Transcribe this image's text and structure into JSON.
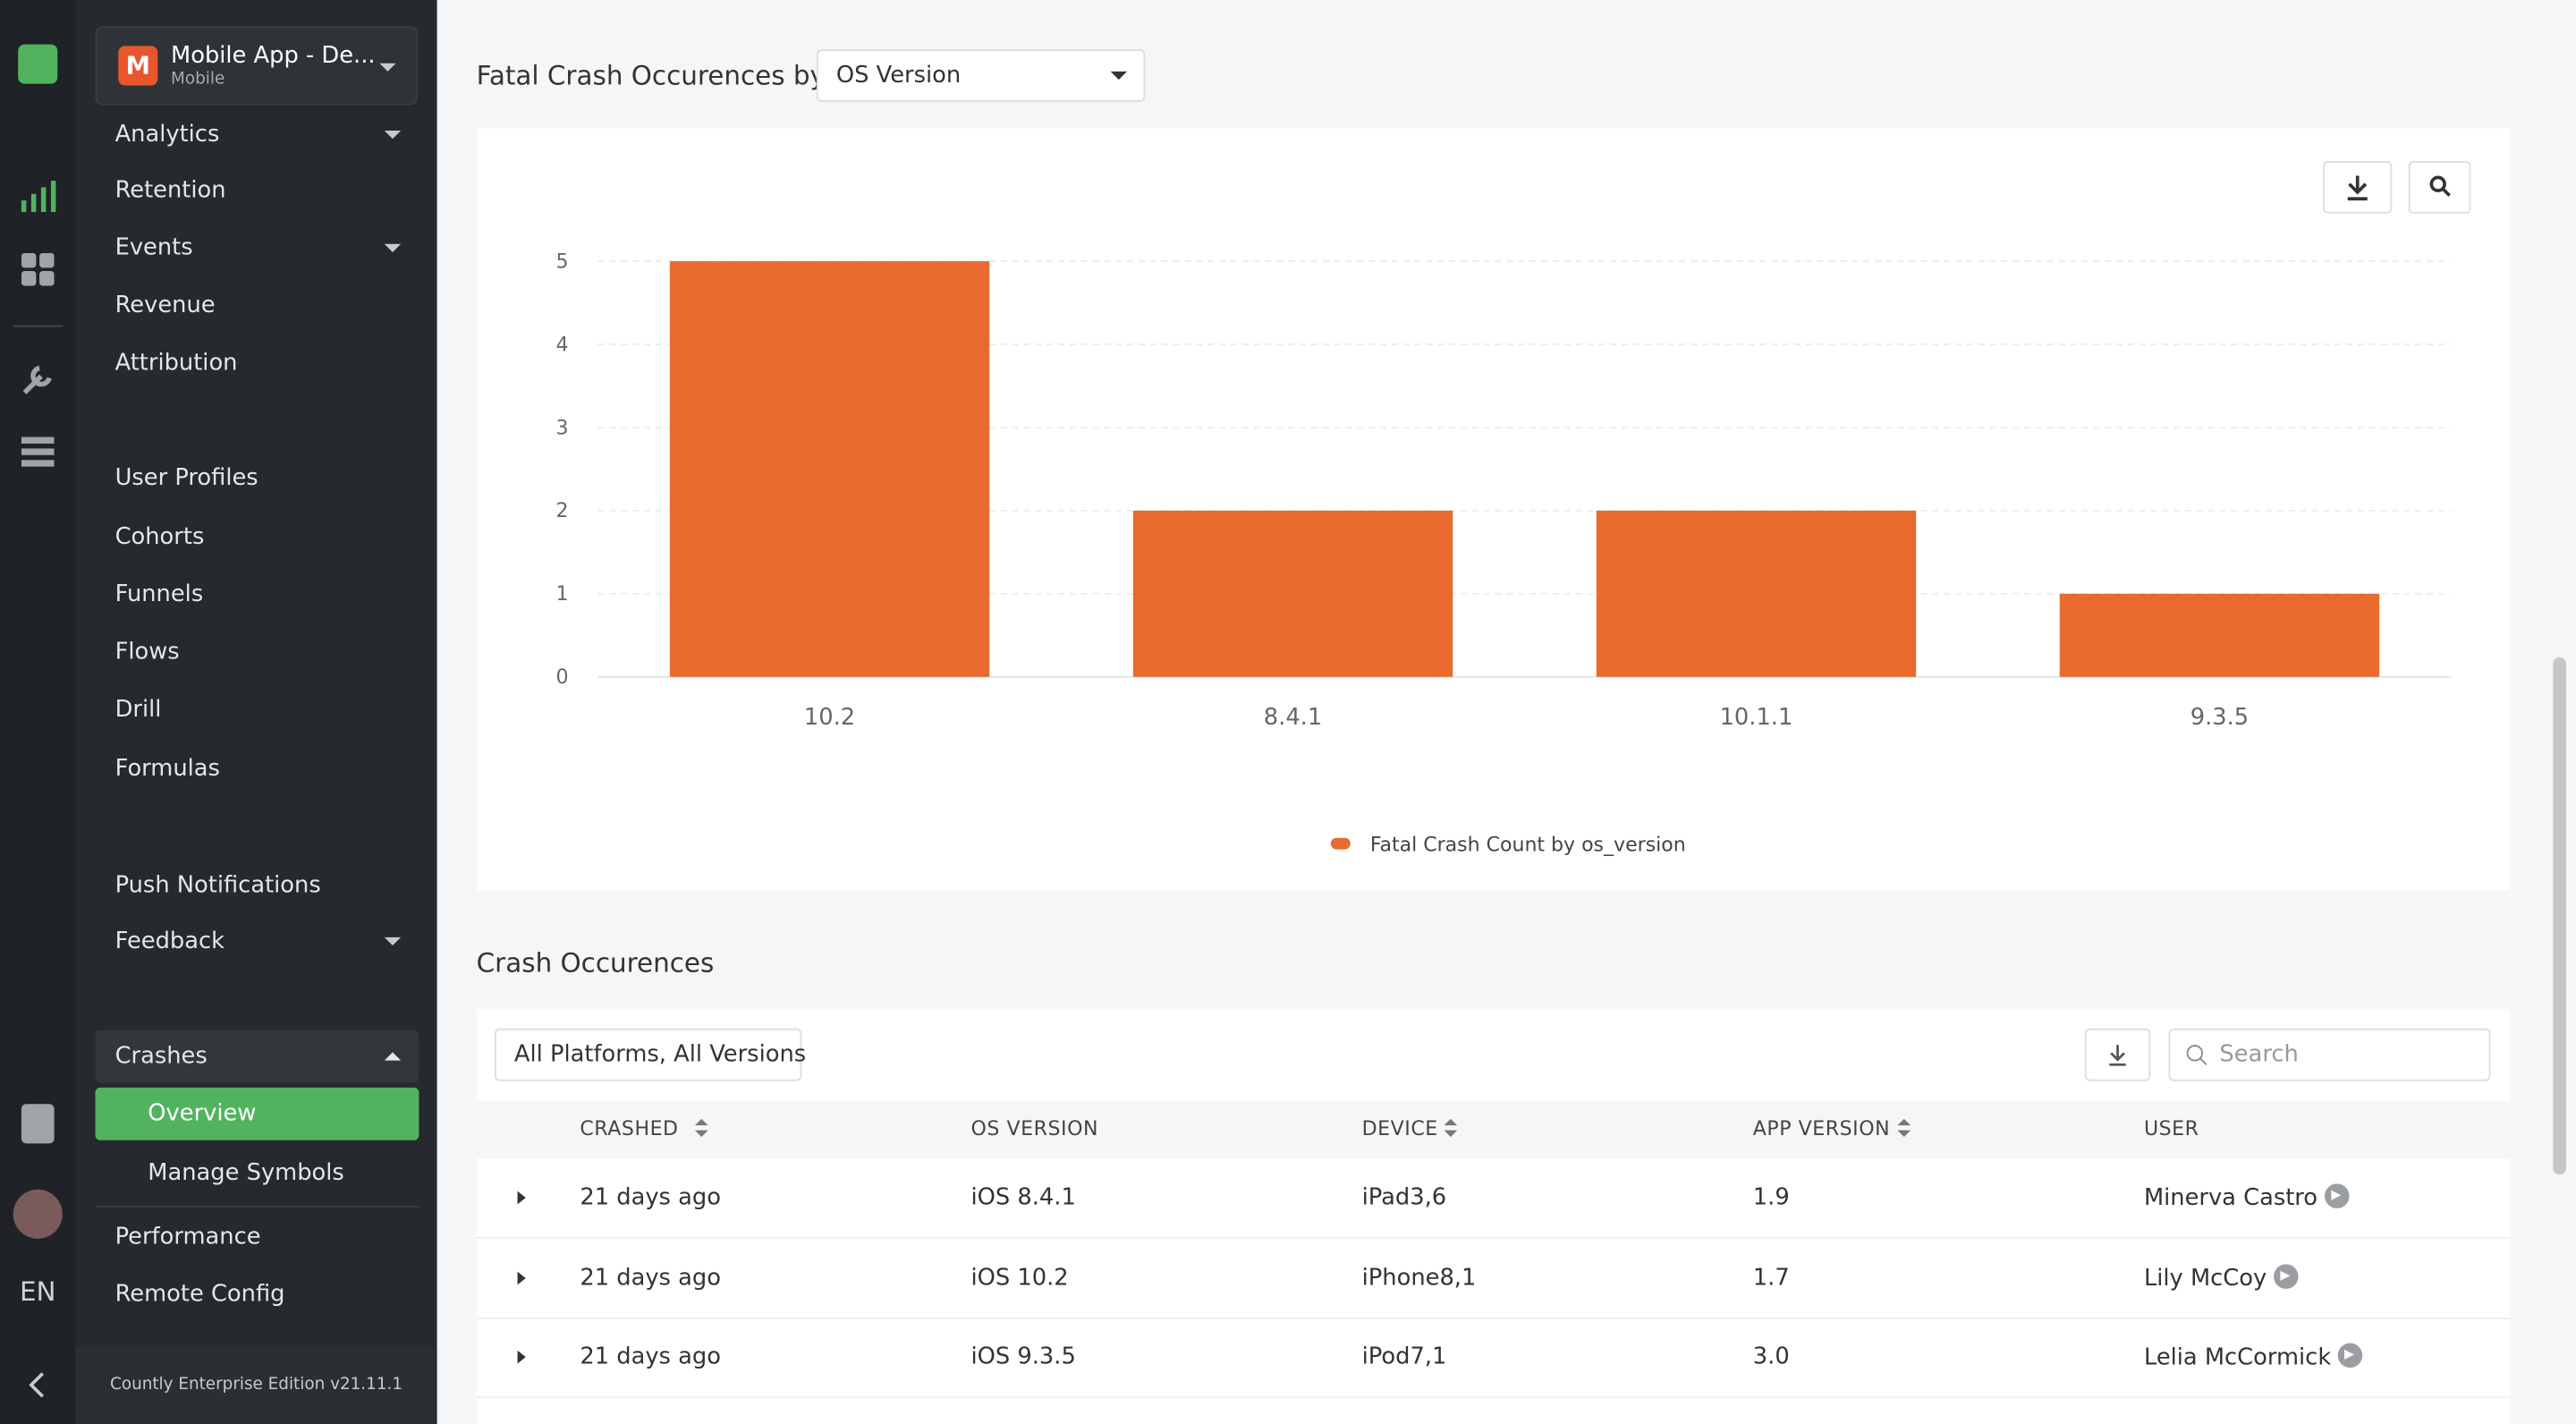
{
  "sidebar": {
    "app_name": "Mobile App - De...",
    "app_type": "Mobile",
    "menu": [
      "Analytics",
      "Retention",
      "Events",
      "Revenue",
      "Attribution",
      "User Profiles",
      "Cohorts",
      "Funnels",
      "Flows",
      "Drill",
      "Formulas",
      "Push Notifications",
      "Feedback",
      "Crashes",
      "Overview",
      "Manage Symbols",
      "Performance",
      "Remote Config"
    ],
    "language": "EN",
    "footer": "Countly Enterprise Edition v21.11.1"
  },
  "chart_section": {
    "title": "Fatal Crash Occurences by",
    "dropdown": "OS Version",
    "chart_data": {
      "type": "bar",
      "categories": [
        "10.2",
        "8.4.1",
        "10.1.1",
        "9.3.5"
      ],
      "series": [
        {
          "name": "Fatal Crash Count by os_version",
          "color": "#e86b2d",
          "values": [
            5,
            2,
            2,
            1
          ]
        }
      ],
      "ylim": [
        0,
        5
      ],
      "yticks": [
        0,
        1,
        2,
        3,
        4,
        5
      ],
      "grid": true,
      "legend": "bottom"
    }
  },
  "table_section": {
    "title": "Crash Occurences",
    "filter": "All Platforms, All Versions",
    "search_placeholder": "Search",
    "columns": [
      "CRASHED",
      "OS VERSION",
      "DEVICE",
      "APP VERSION",
      "USER"
    ],
    "rows": [
      [
        "21 days ago",
        "iOS 8.4.1",
        "iPad3,6",
        "1.9",
        "Minerva Castro"
      ],
      [
        "21 days ago",
        "iOS 10.2",
        "iPhone8,1",
        "1.7",
        "Lily McCoy"
      ],
      [
        "21 days ago",
        "iOS 9.3.5",
        "iPod7,1",
        "3.0",
        "Lelia McCormick"
      ]
    ]
  }
}
